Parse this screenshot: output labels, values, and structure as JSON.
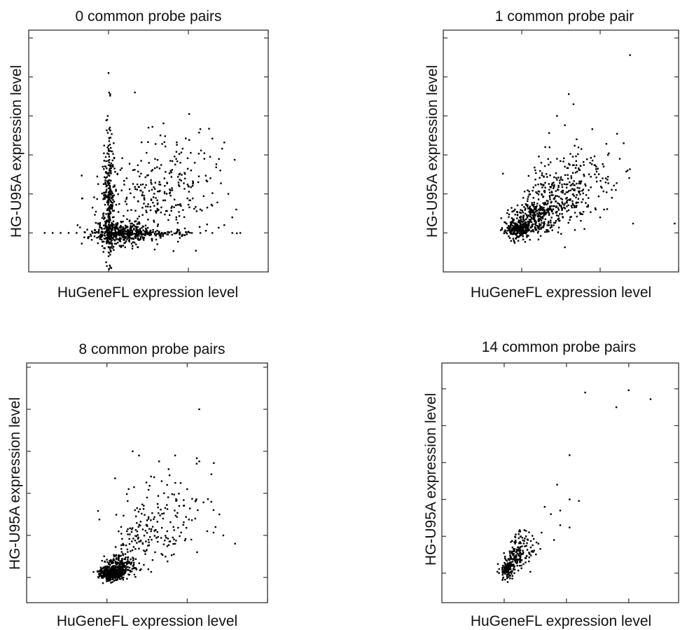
{
  "chart_data": [
    {
      "type": "scatter",
      "title": "0 common probe pairs",
      "xlabel": "HuGeneFL expression level",
      "ylabel": "HG-U95A expression level",
      "xlim": [
        -1,
        2
      ],
      "ylim": [
        -0.5,
        2.6
      ],
      "xticks": [
        0,
        1,
        2
      ],
      "yticks": [
        0,
        0.5,
        1,
        1.5,
        2,
        2.5
      ],
      "grid": false,
      "seed": 11,
      "points": [
        [
          -1.0,
          0.0
        ],
        [
          -0.8,
          0.0
        ],
        [
          -0.7,
          0.0
        ],
        [
          -0.6,
          0.0
        ],
        [
          -0.5,
          0.0
        ],
        [
          -0.4,
          0.0
        ],
        [
          -0.3,
          0.01
        ],
        [
          -0.2,
          0.0
        ],
        [
          0.0,
          2.05
        ],
        [
          0.02,
          1.78
        ],
        [
          0.02,
          1.76
        ],
        [
          0.33,
          1.8
        ],
        [
          0.5,
          1.35
        ],
        [
          0.55,
          1.36
        ],
        [
          0.65,
          1.25
        ],
        [
          1.15,
          1.33
        ],
        [
          1.3,
          1.21
        ],
        [
          1.45,
          1.16
        ],
        [
          0.85,
          1.04
        ],
        [
          1.2,
          0.95
        ],
        [
          1.35,
          0.88
        ],
        [
          1.4,
          0.8
        ],
        [
          0.9,
          0.9
        ],
        [
          0.7,
          0.7
        ],
        [
          1.0,
          0.6
        ],
        [
          1.5,
          0.5
        ],
        [
          1.6,
          0.3
        ],
        [
          1.55,
          0.2
        ],
        [
          1.3,
          0.35
        ],
        [
          1.45,
          0.1
        ],
        [
          1.65,
          0.0
        ],
        [
          1.55,
          0.0
        ],
        [
          1.3,
          0.0
        ],
        [
          1.15,
          0.0
        ],
        [
          1.0,
          0.01
        ],
        [
          0.85,
          0.0
        ],
        [
          0.7,
          0.0
        ],
        [
          0.0,
          -0.3
        ],
        [
          0.02,
          -0.28
        ],
        [
          0.0,
          -0.25
        ]
      ],
      "clusters": [
        {
          "cx": 0.15,
          "cy": 0.0,
          "sx": 0.18,
          "sy": 0.08,
          "n": 420
        },
        {
          "cx": 0.0,
          "cy": 0.5,
          "sx": 0.03,
          "sy": 0.42,
          "n": 260
        },
        {
          "cx": 0.45,
          "cy": 0.0,
          "sx": 0.3,
          "sy": 0.02,
          "n": 120
        },
        {
          "cx": 0.55,
          "cy": 0.45,
          "sx": 0.35,
          "sy": 0.28,
          "n": 200
        },
        {
          "cx": 0.9,
          "cy": 0.7,
          "sx": 0.35,
          "sy": 0.3,
          "n": 90
        }
      ]
    },
    {
      "type": "scatter",
      "title": "1 common probe pair",
      "xlabel": "HuGeneFL expression level",
      "ylabel": "HG-U95A expression level",
      "xlim": [
        -1,
        2
      ],
      "ylim": [
        -0.5,
        2.6
      ],
      "xticks": [
        0,
        1,
        2
      ],
      "yticks": [
        0,
        0.5,
        1,
        1.5,
        2,
        2.5
      ],
      "grid": false,
      "seed": 23,
      "points": [
        [
          1.38,
          2.28
        ],
        [
          0.6,
          1.78
        ],
        [
          0.66,
          1.65
        ],
        [
          0.45,
          1.5
        ],
        [
          0.35,
          1.28
        ],
        [
          0.55,
          1.38
        ],
        [
          0.9,
          1.33
        ],
        [
          0.7,
          1.2
        ],
        [
          1.1,
          1.0
        ],
        [
          1.3,
          1.15
        ],
        [
          1.25,
          0.95
        ],
        [
          1.35,
          0.8
        ],
        [
          1.1,
          0.72
        ],
        [
          0.95,
          0.85
        ],
        [
          1.15,
          0.45
        ],
        [
          1.05,
          0.3
        ],
        [
          1.42,
          0.12
        ],
        [
          1.95,
          0.12
        ],
        [
          1.0,
          0.2
        ],
        [
          0.8,
          0.05
        ],
        [
          0.3,
          1.1
        ],
        [
          0.25,
          0.9
        ],
        [
          0.45,
          0.95
        ],
        [
          0.55,
          0.85
        ],
        [
          0.75,
          0.65
        ],
        [
          1.2,
          0.55
        ],
        [
          0.25,
          0.2
        ],
        [
          0.15,
          0.45
        ]
      ],
      "clusters": [
        {
          "cx": -0.05,
          "cy": 0.05,
          "sx": 0.08,
          "sy": 0.06,
          "n": 260
        },
        {
          "cx": 0.15,
          "cy": 0.2,
          "sx": 0.14,
          "sy": 0.12,
          "n": 260
        },
        {
          "cx": 0.45,
          "cy": 0.45,
          "sx": 0.22,
          "sy": 0.2,
          "n": 240
        },
        {
          "cx": 0.75,
          "cy": 0.7,
          "sx": 0.25,
          "sy": 0.22,
          "n": 100
        }
      ]
    },
    {
      "type": "scatter",
      "title": "8 common probe pairs",
      "xlabel": "HuGeneFL expression level",
      "ylabel": "HG-U95A expression level",
      "xlim": [
        -1,
        2
      ],
      "ylim": [
        -0.3,
        2.55
      ],
      "xticks": [
        0,
        1,
        2
      ],
      "yticks": [
        0,
        0.5,
        1,
        1.5,
        2,
        2.5
      ],
      "grid": false,
      "seed": 37,
      "points": [
        [
          1.15,
          2.0
        ],
        [
          0.32,
          1.5
        ],
        [
          0.4,
          1.45
        ],
        [
          0.65,
          1.38
        ],
        [
          0.85,
          1.45
        ],
        [
          1.15,
          1.38
        ],
        [
          0.55,
          1.2
        ],
        [
          0.75,
          1.1
        ],
        [
          1.0,
          1.05
        ],
        [
          1.3,
          0.9
        ],
        [
          1.4,
          0.75
        ],
        [
          1.25,
          0.55
        ],
        [
          1.45,
          0.5
        ],
        [
          0.9,
          0.85
        ],
        [
          0.35,
          0.8
        ],
        [
          0.5,
          0.95
        ],
        [
          0.7,
          0.7
        ],
        [
          1.1,
          0.7
        ],
        [
          1.05,
          0.45
        ],
        [
          0.85,
          0.4
        ],
        [
          0.6,
          0.3
        ],
        [
          0.55,
          0.55
        ],
        [
          0.25,
          0.55
        ],
        [
          0.2,
          0.4
        ]
      ],
      "clusters": [
        {
          "cx": 0.05,
          "cy": 0.05,
          "sx": 0.07,
          "sy": 0.04,
          "n": 350
        },
        {
          "cx": 0.18,
          "cy": 0.15,
          "sx": 0.1,
          "sy": 0.07,
          "n": 200
        },
        {
          "cx": 0.45,
          "cy": 0.45,
          "sx": 0.22,
          "sy": 0.2,
          "n": 110
        },
        {
          "cx": 0.8,
          "cy": 0.75,
          "sx": 0.28,
          "sy": 0.25,
          "n": 90
        }
      ]
    },
    {
      "type": "scatter",
      "title": "14 common probe pairs",
      "xlabel": "HuGeneFL expression level",
      "ylabel": "HG-U95A expression level",
      "xlim": [
        -1,
        2.8
      ],
      "ylim": [
        -0.4,
        2.85
      ],
      "xticks": [
        0,
        1,
        2
      ],
      "yticks": [
        0,
        0.5,
        1,
        1.5,
        2,
        2.5
      ],
      "grid": false,
      "seed": 53,
      "points": [
        [
          1.0,
          2.85
        ],
        [
          1.2,
          2.85
        ],
        [
          1.9,
          2.85
        ],
        [
          1.3,
          2.45
        ],
        [
          2.0,
          2.48
        ],
        [
          2.35,
          2.36
        ],
        [
          1.8,
          2.25
        ],
        [
          1.05,
          1.6
        ],
        [
          0.85,
          1.2
        ],
        [
          1.05,
          1.0
        ],
        [
          1.2,
          0.98
        ],
        [
          0.9,
          0.85
        ],
        [
          0.65,
          0.9
        ],
        [
          0.75,
          0.8
        ],
        [
          1.05,
          0.62
        ],
        [
          0.8,
          0.45
        ],
        [
          0.6,
          0.55
        ],
        [
          0.55,
          0.4
        ],
        [
          0.45,
          0.3
        ],
        [
          0.35,
          0.5
        ],
        [
          0.9,
          0.65
        ]
      ],
      "clusters": [
        {
          "cx": 0.05,
          "cy": 0.05,
          "sx": 0.06,
          "sy": 0.06,
          "n": 120
        },
        {
          "cx": 0.18,
          "cy": 0.2,
          "sx": 0.08,
          "sy": 0.09,
          "n": 110
        },
        {
          "cx": 0.35,
          "cy": 0.38,
          "sx": 0.12,
          "sy": 0.12,
          "n": 60
        }
      ]
    }
  ]
}
